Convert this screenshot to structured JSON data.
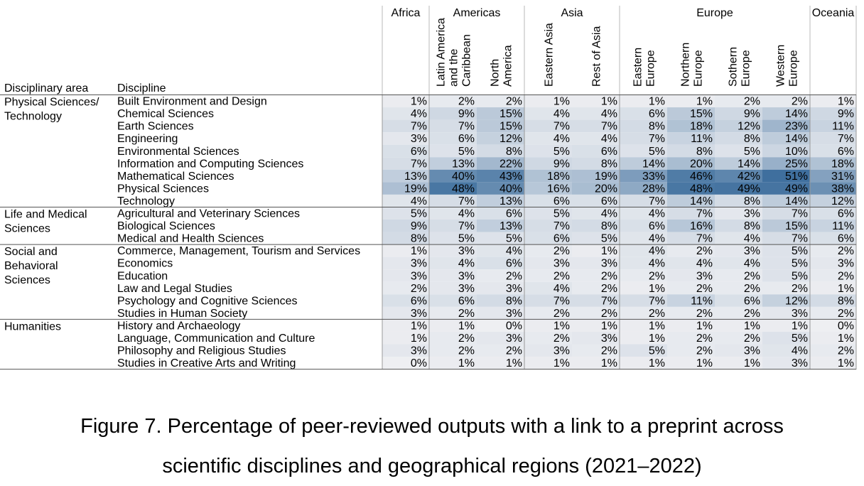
{
  "chart_data": {
    "type": "heatmap",
    "title": "Figure 7. Percentage of peer-reviewed outputs with a link to a preprint across scientific disciplines and geographical regions (2021–2022)",
    "caption_lines": [
      "Figure 7. Percentage of peer-reviewed outputs with a link to a preprint across",
      "scientific disciplines and geographical regions (2021–2022)"
    ],
    "row_header_area": "Disciplinary area",
    "row_header_discipline": "Discipline",
    "region_groups": [
      {
        "name": "Africa",
        "span": 1
      },
      {
        "name": "Americas",
        "span": 2
      },
      {
        "name": "Asia",
        "span": 2
      },
      {
        "name": "Europe",
        "span": 4
      },
      {
        "name": "Oceania",
        "span": 1
      }
    ],
    "subregions": [
      [],
      [
        [
          "Latin America",
          "and the",
          "Caribbean"
        ],
        [
          "North",
          "America"
        ]
      ],
      [
        [
          "Eastern Asia"
        ],
        [
          "Rest of Asia"
        ]
      ],
      [
        [
          "Eastern",
          "Europe"
        ],
        [
          "Northern",
          "Europe"
        ],
        [
          "Sothern",
          "Europe"
        ],
        [
          "Western",
          "Europe"
        ]
      ],
      []
    ],
    "areas": [
      {
        "label": [
          "Physical Sciences/",
          "Technology"
        ],
        "rows": 9
      },
      {
        "label": [
          "Life and Medical",
          "Sciences"
        ],
        "rows": 3
      },
      {
        "label": [
          "Social and",
          "Behavioral",
          "Sciences"
        ],
        "rows": 6
      },
      {
        "label": [
          "Humanities"
        ],
        "rows": 4
      }
    ],
    "disciplines": [
      "Built Environment and Design",
      "Chemical Sciences",
      "Earth Sciences",
      "Engineering",
      "Environmental Sciences",
      "Information and Computing Sciences",
      "Mathematical Sciences",
      "Physical Sciences",
      "Technology",
      "Agricultural and Veterinary Sciences",
      "Biological Sciences",
      "Medical and Health Sciences",
      "Commerce, Management, Tourism and Services",
      "Economics",
      "Education",
      "Law and Legal Studies",
      "Psychology and Cognitive Sciences",
      "Studies in Human Society",
      "History and Archaeology",
      "Language, Communication and Culture",
      "Philosophy and Religious Studies",
      "Studies in Creative Arts and Writing"
    ],
    "values": [
      [
        1,
        2,
        2,
        1,
        1,
        1,
        1,
        2,
        2,
        1
      ],
      [
        4,
        9,
        15,
        4,
        4,
        6,
        15,
        9,
        14,
        9
      ],
      [
        7,
        7,
        15,
        7,
        7,
        8,
        18,
        12,
        23,
        11
      ],
      [
        3,
        6,
        12,
        4,
        4,
        7,
        11,
        8,
        14,
        7
      ],
      [
        6,
        5,
        8,
        5,
        6,
        5,
        8,
        5,
        10,
        6
      ],
      [
        7,
        13,
        22,
        9,
        8,
        14,
        20,
        14,
        25,
        18
      ],
      [
        13,
        40,
        43,
        18,
        19,
        33,
        46,
        42,
        51,
        31
      ],
      [
        19,
        48,
        40,
        16,
        20,
        28,
        48,
        49,
        49,
        38
      ],
      [
        4,
        7,
        13,
        6,
        6,
        7,
        14,
        8,
        14,
        12
      ],
      [
        5,
        4,
        6,
        5,
        4,
        4,
        7,
        3,
        7,
        6
      ],
      [
        9,
        7,
        13,
        7,
        8,
        6,
        16,
        8,
        15,
        11
      ],
      [
        8,
        5,
        5,
        6,
        5,
        4,
        7,
        4,
        7,
        6
      ],
      [
        1,
        3,
        4,
        2,
        1,
        4,
        2,
        3,
        5,
        2
      ],
      [
        3,
        4,
        6,
        3,
        3,
        4,
        4,
        4,
        5,
        3
      ],
      [
        3,
        3,
        2,
        2,
        2,
        2,
        3,
        2,
        5,
        2
      ],
      [
        2,
        3,
        3,
        4,
        2,
        1,
        2,
        2,
        2,
        1
      ],
      [
        6,
        6,
        8,
        7,
        7,
        7,
        11,
        6,
        12,
        8
      ],
      [
        3,
        2,
        3,
        2,
        2,
        2,
        2,
        2,
        3,
        2
      ],
      [
        1,
        1,
        0,
        1,
        1,
        1,
        1,
        1,
        1,
        0
      ],
      [
        1,
        2,
        3,
        2,
        3,
        1,
        2,
        2,
        5,
        1
      ],
      [
        3,
        2,
        2,
        3,
        2,
        5,
        2,
        3,
        4,
        2
      ],
      [
        0,
        1,
        1,
        1,
        1,
        1,
        1,
        1,
        3,
        1
      ]
    ],
    "value_suffix": "%",
    "color_scale": {
      "low": "#eeeff2",
      "high": "#3f6f9e",
      "min": 0,
      "max": 51
    }
  }
}
